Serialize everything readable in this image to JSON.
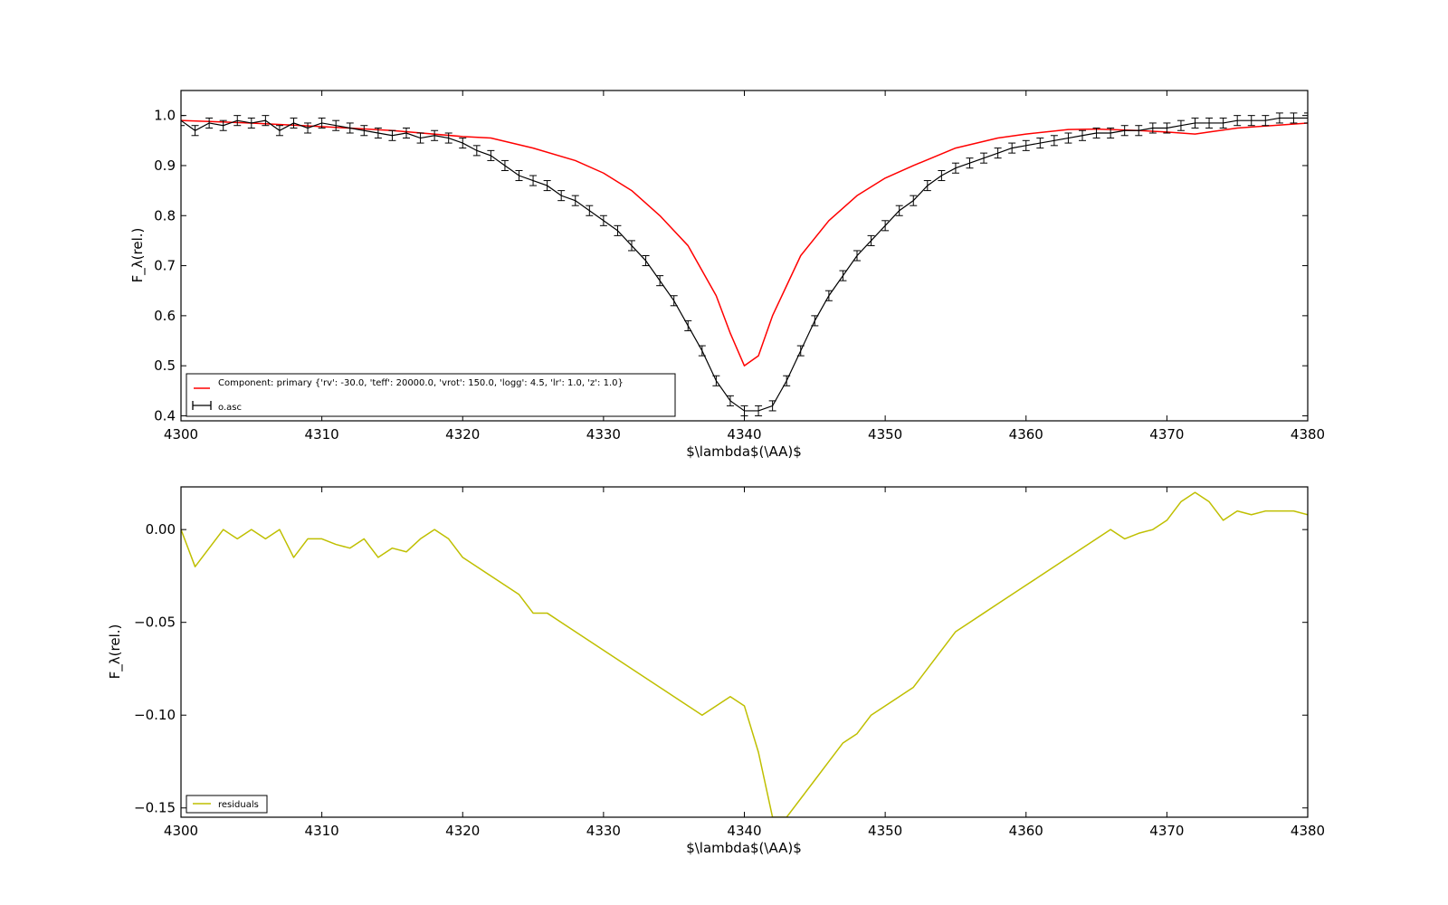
{
  "chart_data": [
    {
      "type": "line",
      "xlabel": "$\\lambda$(\\AA)$",
      "ylabel": "F_λ(rel.)",
      "xlim": [
        4300,
        4380
      ],
      "ylim": [
        0.39,
        1.05
      ],
      "x_ticks": [
        "4300",
        "4310",
        "4320",
        "4330",
        "4340",
        "4350",
        "4360",
        "4370",
        "4380"
      ],
      "y_ticks": [
        "0.4",
        "0.5",
        "0.6",
        "0.7",
        "0.8",
        "0.9",
        "1.0"
      ],
      "legend_position": "lower-left",
      "series": [
        {
          "name": "Component: primary {'rv': -30.0, 'teff': 20000.0, 'vrot': 150.0, 'logg': 4.5, 'lr': 1.0, 'z': 1.0}",
          "kind": "line",
          "color": "#ff0000",
          "x": [
            4300,
            4305,
            4310,
            4315,
            4320,
            4322,
            4325,
            4328,
            4330,
            4332,
            4334,
            4336,
            4338,
            4339,
            4340,
            4341,
            4342,
            4344,
            4346,
            4348,
            4350,
            4352,
            4355,
            4358,
            4360,
            4363,
            4365,
            4368,
            4370,
            4371,
            4372,
            4373,
            4375,
            4380
          ],
          "y": [
            0.99,
            0.985,
            0.978,
            0.97,
            0.958,
            0.955,
            0.935,
            0.91,
            0.885,
            0.85,
            0.8,
            0.74,
            0.64,
            0.565,
            0.5,
            0.52,
            0.6,
            0.72,
            0.79,
            0.84,
            0.875,
            0.9,
            0.935,
            0.955,
            0.963,
            0.972,
            0.973,
            0.97,
            0.967,
            0.965,
            0.963,
            0.967,
            0.975,
            0.985
          ]
        },
        {
          "name": "o.asc",
          "kind": "errorbar",
          "color": "#000000",
          "err": 0.01,
          "x": [
            4300,
            4301,
            4302,
            4303,
            4304,
            4305,
            4306,
            4307,
            4308,
            4309,
            4310,
            4311,
            4312,
            4313,
            4314,
            4315,
            4316,
            4317,
            4318,
            4319,
            4320,
            4321,
            4322,
            4323,
            4324,
            4325,
            4326,
            4327,
            4328,
            4329,
            4330,
            4331,
            4332,
            4333,
            4334,
            4335,
            4336,
            4337,
            4338,
            4339,
            4340,
            4341,
            4342,
            4343,
            4344,
            4345,
            4346,
            4347,
            4348,
            4349,
            4350,
            4351,
            4352,
            4353,
            4354,
            4355,
            4356,
            4357,
            4358,
            4359,
            4360,
            4361,
            4362,
            4363,
            4364,
            4365,
            4366,
            4367,
            4368,
            4369,
            4370,
            4371,
            4372,
            4373,
            4374,
            4375,
            4376,
            4377,
            4378,
            4379,
            4380
          ],
          "y": [
            0.99,
            0.97,
            0.985,
            0.98,
            0.99,
            0.985,
            0.99,
            0.97,
            0.985,
            0.975,
            0.985,
            0.98,
            0.975,
            0.97,
            0.965,
            0.96,
            0.965,
            0.955,
            0.96,
            0.955,
            0.945,
            0.93,
            0.92,
            0.9,
            0.88,
            0.87,
            0.86,
            0.84,
            0.83,
            0.81,
            0.79,
            0.77,
            0.74,
            0.71,
            0.67,
            0.63,
            0.58,
            0.53,
            0.47,
            0.43,
            0.41,
            0.41,
            0.42,
            0.47,
            0.53,
            0.59,
            0.64,
            0.68,
            0.72,
            0.75,
            0.78,
            0.81,
            0.83,
            0.86,
            0.88,
            0.895,
            0.905,
            0.915,
            0.925,
            0.935,
            0.94,
            0.945,
            0.95,
            0.955,
            0.96,
            0.965,
            0.965,
            0.97,
            0.97,
            0.975,
            0.975,
            0.98,
            0.985,
            0.985,
            0.985,
            0.99,
            0.99,
            0.99,
            0.995,
            0.995,
            0.995
          ]
        }
      ]
    },
    {
      "type": "line",
      "xlabel": "$\\lambda$(\\AA)$",
      "ylabel": "F_λ(rel.)",
      "xlim": [
        4300,
        4380
      ],
      "ylim": [
        -0.155,
        0.023
      ],
      "x_ticks": [
        "4300",
        "4310",
        "4320",
        "4330",
        "4340",
        "4350",
        "4360",
        "4370",
        "4380"
      ],
      "y_ticks": [
        "0.00",
        "−0.05",
        "−0.10",
        "−0.15"
      ],
      "legend_position": "lower-left",
      "series": [
        {
          "name": "residuals",
          "kind": "line",
          "color": "#bfbf00",
          "x": [
            4300,
            4301,
            4302,
            4303,
            4304,
            4305,
            4306,
            4307,
            4308,
            4309,
            4310,
            4311,
            4312,
            4313,
            4314,
            4315,
            4316,
            4317,
            4318,
            4319,
            4320,
            4321,
            4322,
            4323,
            4324,
            4325,
            4326,
            4327,
            4328,
            4329,
            4330,
            4331,
            4332,
            4333,
            4334,
            4335,
            4336,
            4337,
            4338,
            4339,
            4340,
            4341,
            4342,
            4343,
            4344,
            4345,
            4346,
            4347,
            4348,
            4349,
            4350,
            4351,
            4352,
            4353,
            4354,
            4355,
            4356,
            4357,
            4358,
            4359,
            4360,
            4361,
            4362,
            4363,
            4364,
            4365,
            4366,
            4367,
            4368,
            4369,
            4370,
            4371,
            4372,
            4373,
            4374,
            4375,
            4376,
            4377,
            4378,
            4379,
            4380
          ],
          "y": [
            0.0,
            -0.02,
            -0.01,
            0.0,
            -0.005,
            0.0,
            -0.005,
            0.0,
            -0.015,
            -0.005,
            -0.005,
            -0.008,
            -0.01,
            -0.005,
            -0.015,
            -0.01,
            -0.012,
            -0.005,
            0.0,
            -0.005,
            -0.015,
            -0.02,
            -0.025,
            -0.03,
            -0.035,
            -0.045,
            -0.045,
            -0.05,
            -0.055,
            -0.06,
            -0.065,
            -0.07,
            -0.075,
            -0.08,
            -0.085,
            -0.09,
            -0.095,
            -0.1,
            -0.095,
            -0.09,
            -0.095,
            -0.12,
            -0.155,
            -0.155,
            -0.145,
            -0.135,
            -0.125,
            -0.115,
            -0.11,
            -0.1,
            -0.095,
            -0.09,
            -0.085,
            -0.075,
            -0.065,
            -0.055,
            -0.05,
            -0.045,
            -0.04,
            -0.035,
            -0.03,
            -0.025,
            -0.02,
            -0.015,
            -0.01,
            -0.005,
            0.0,
            -0.005,
            -0.002,
            0.0,
            0.005,
            0.015,
            0.02,
            0.015,
            0.005,
            0.01,
            0.008,
            0.01,
            0.01,
            0.01,
            0.008
          ]
        }
      ]
    }
  ]
}
